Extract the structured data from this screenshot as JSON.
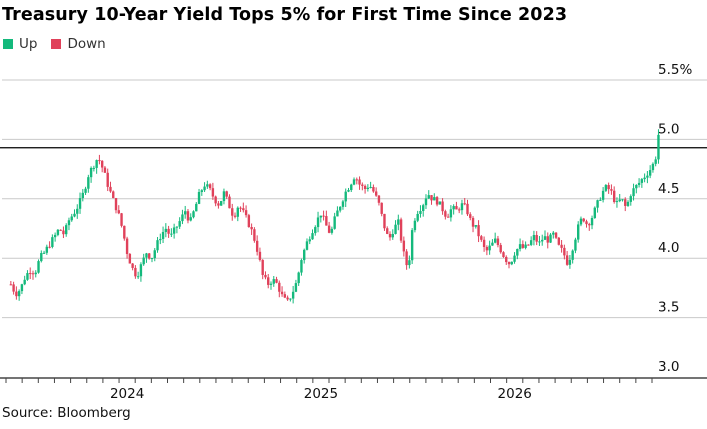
{
  "chart_data": {
    "type": "candlestick",
    "title": "Treasury 10-Year Yield Tops 5% for First Time Since 2023",
    "source": "Source: Bloomberg",
    "legend": [
      {
        "label": "Up",
        "color": "#14b97c"
      },
      {
        "label": "Down",
        "color": "#e0415a"
      }
    ],
    "y_axis": {
      "ticks": [
        3.0,
        3.5,
        4.0,
        4.5,
        5.0,
        5.5
      ],
      "tick_labels": [
        "3.0",
        "3.5",
        "4.0",
        "4.5",
        "5.0",
        "5.5%"
      ],
      "ylim": [
        3.0,
        5.5
      ],
      "position": "right"
    },
    "x_axis": {
      "tick_labels": [
        "2024",
        "2025",
        "2026"
      ],
      "tick_positions_month_index": [
        2.5,
        14.5,
        26.5
      ],
      "xlim_month_index": [
        -5,
        35
      ]
    },
    "reference_line": {
      "value": 4.93,
      "color": "#000000"
    },
    "grid": "horizontal",
    "series_note": "approximate daily yield path, one point per ~3 trading days",
    "series": [
      {
        "t": -4.7,
        "v": 3.78
      },
      {
        "t": -4.4,
        "v": 3.7
      },
      {
        "t": -4.1,
        "v": 3.74
      },
      {
        "t": -3.8,
        "v": 3.85
      },
      {
        "t": -3.5,
        "v": 3.9
      },
      {
        "t": -3.2,
        "v": 3.88
      },
      {
        "t": -2.9,
        "v": 4.0
      },
      {
        "t": -2.6,
        "v": 4.05
      },
      {
        "t": -2.3,
        "v": 4.12
      },
      {
        "t": -2.0,
        "v": 4.18
      },
      {
        "t": -1.7,
        "v": 4.25
      },
      {
        "t": -1.4,
        "v": 4.2
      },
      {
        "t": -1.1,
        "v": 4.32
      },
      {
        "t": -0.8,
        "v": 4.38
      },
      {
        "t": -0.5,
        "v": 4.45
      },
      {
        "t": -0.2,
        "v": 4.55
      },
      {
        "t": 0.1,
        "v": 4.7
      },
      {
        "t": 0.4,
        "v": 4.78
      },
      {
        "t": 0.7,
        "v": 4.85
      },
      {
        "t": 1.0,
        "v": 4.75
      },
      {
        "t": 1.3,
        "v": 4.62
      },
      {
        "t": 1.6,
        "v": 4.5
      },
      {
        "t": 1.9,
        "v": 4.4
      },
      {
        "t": 2.2,
        "v": 4.25
      },
      {
        "t": 2.5,
        "v": 4.05
      },
      {
        "t": 2.8,
        "v": 3.92
      },
      {
        "t": 3.1,
        "v": 3.85
      },
      {
        "t": 3.4,
        "v": 3.95
      },
      {
        "t": 3.7,
        "v": 4.05
      },
      {
        "t": 4.0,
        "v": 4.0
      },
      {
        "t": 4.3,
        "v": 4.1
      },
      {
        "t": 4.6,
        "v": 4.2
      },
      {
        "t": 4.9,
        "v": 4.25
      },
      {
        "t": 5.2,
        "v": 4.18
      },
      {
        "t": 5.5,
        "v": 4.25
      },
      {
        "t": 5.8,
        "v": 4.32
      },
      {
        "t": 6.1,
        "v": 4.4
      },
      {
        "t": 6.4,
        "v": 4.3
      },
      {
        "t": 6.7,
        "v": 4.42
      },
      {
        "t": 7.0,
        "v": 4.55
      },
      {
        "t": 7.3,
        "v": 4.62
      },
      {
        "t": 7.6,
        "v": 4.58
      },
      {
        "t": 7.9,
        "v": 4.5
      },
      {
        "t": 8.2,
        "v": 4.45
      },
      {
        "t": 8.5,
        "v": 4.55
      },
      {
        "t": 8.8,
        "v": 4.45
      },
      {
        "t": 9.1,
        "v": 4.35
      },
      {
        "t": 9.4,
        "v": 4.45
      },
      {
        "t": 9.7,
        "v": 4.38
      },
      {
        "t": 10.0,
        "v": 4.3
      },
      {
        "t": 10.3,
        "v": 4.2
      },
      {
        "t": 10.6,
        "v": 4.05
      },
      {
        "t": 10.9,
        "v": 3.85
      },
      {
        "t": 11.2,
        "v": 3.78
      },
      {
        "t": 11.5,
        "v": 3.82
      },
      {
        "t": 11.8,
        "v": 3.78
      },
      {
        "t": 12.1,
        "v": 3.68
      },
      {
        "t": 12.4,
        "v": 3.62
      },
      {
        "t": 12.7,
        "v": 3.7
      },
      {
        "t": 13.0,
        "v": 3.8
      },
      {
        "t": 13.3,
        "v": 4.0
      },
      {
        "t": 13.6,
        "v": 4.12
      },
      {
        "t": 13.9,
        "v": 4.22
      },
      {
        "t": 14.2,
        "v": 4.3
      },
      {
        "t": 14.5,
        "v": 4.38
      },
      {
        "t": 14.8,
        "v": 4.28
      },
      {
        "t": 15.1,
        "v": 4.2
      },
      {
        "t": 15.4,
        "v": 4.35
      },
      {
        "t": 15.7,
        "v": 4.45
      },
      {
        "t": 16.0,
        "v": 4.55
      },
      {
        "t": 16.3,
        "v": 4.62
      },
      {
        "t": 16.6,
        "v": 4.7
      },
      {
        "t": 16.9,
        "v": 4.62
      },
      {
        "t": 17.2,
        "v": 4.58
      },
      {
        "t": 17.5,
        "v": 4.62
      },
      {
        "t": 17.8,
        "v": 4.55
      },
      {
        "t": 18.1,
        "v": 4.45
      },
      {
        "t": 18.4,
        "v": 4.28
      },
      {
        "t": 18.7,
        "v": 4.15
      },
      {
        "t": 19.0,
        "v": 4.25
      },
      {
        "t": 19.3,
        "v": 4.3
      },
      {
        "t": 19.6,
        "v": 4.05
      },
      {
        "t": 19.9,
        "v": 3.9
      },
      {
        "t": 20.2,
        "v": 4.3
      },
      {
        "t": 20.5,
        "v": 4.4
      },
      {
        "t": 20.8,
        "v": 4.45
      },
      {
        "t": 21.1,
        "v": 4.55
      },
      {
        "t": 21.4,
        "v": 4.5
      },
      {
        "t": 21.7,
        "v": 4.48
      },
      {
        "t": 22.0,
        "v": 4.42
      },
      {
        "t": 22.3,
        "v": 4.35
      },
      {
        "t": 22.6,
        "v": 4.42
      },
      {
        "t": 22.9,
        "v": 4.4
      },
      {
        "t": 23.2,
        "v": 4.45
      },
      {
        "t": 23.5,
        "v": 4.42
      },
      {
        "t": 23.8,
        "v": 4.3
      },
      {
        "t": 24.1,
        "v": 4.25
      },
      {
        "t": 24.4,
        "v": 4.15
      },
      {
        "t": 24.7,
        "v": 4.05
      },
      {
        "t": 25.0,
        "v": 4.1
      },
      {
        "t": 25.3,
        "v": 4.15
      },
      {
        "t": 25.6,
        "v": 4.08
      },
      {
        "t": 25.9,
        "v": 4.0
      },
      {
        "t": 26.2,
        "v": 3.95
      },
      {
        "t": 26.5,
        "v": 4.05
      },
      {
        "t": 26.8,
        "v": 4.1
      },
      {
        "t": 27.1,
        "v": 4.08
      },
      {
        "t": 27.4,
        "v": 4.12
      },
      {
        "t": 27.7,
        "v": 4.18
      },
      {
        "t": 28.0,
        "v": 4.12
      },
      {
        "t": 28.3,
        "v": 4.18
      },
      {
        "t": 28.6,
        "v": 4.15
      },
      {
        "t": 28.9,
        "v": 4.2
      },
      {
        "t": 29.2,
        "v": 4.1
      },
      {
        "t": 29.5,
        "v": 4.05
      },
      {
        "t": 29.8,
        "v": 3.95
      },
      {
        "t": 30.1,
        "v": 4.1
      },
      {
        "t": 30.4,
        "v": 4.25
      },
      {
        "t": 30.7,
        "v": 4.35
      },
      {
        "t": 31.0,
        "v": 4.28
      },
      {
        "t": 31.3,
        "v": 4.35
      },
      {
        "t": 31.6,
        "v": 4.45
      },
      {
        "t": 31.9,
        "v": 4.55
      },
      {
        "t": 32.2,
        "v": 4.6
      },
      {
        "t": 32.5,
        "v": 4.55
      },
      {
        "t": 32.8,
        "v": 4.45
      },
      {
        "t": 33.1,
        "v": 4.5
      },
      {
        "t": 33.4,
        "v": 4.42
      },
      {
        "t": 33.7,
        "v": 4.55
      },
      {
        "t": 34.0,
        "v": 4.6
      },
      {
        "t": 34.3,
        "v": 4.65
      },
      {
        "t": 34.6,
        "v": 4.7
      },
      {
        "t": 34.9,
        "v": 4.75
      },
      {
        "t": 35.2,
        "v": 4.82
      },
      {
        "t": 35.4,
        "v": 5.04
      }
    ]
  }
}
